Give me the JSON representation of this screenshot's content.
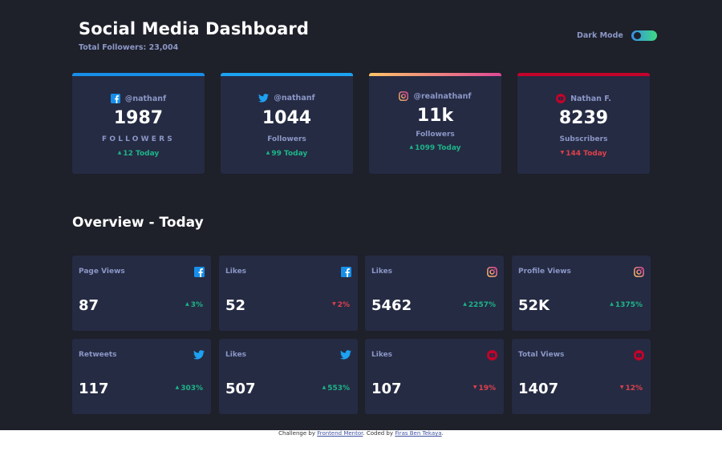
{
  "header": {
    "title": "Social Media Dashboard",
    "total_followers": "Total Followers: 23,004",
    "dark_mode_label": "Dark Mode"
  },
  "colors": {
    "background": "#1e202a",
    "card": "#252b43",
    "facebook": "#178fe9",
    "twitter": "#1da1f2",
    "instagram_gradient": [
      "#fdc468",
      "#df4996"
    ],
    "youtube": "#c4032a",
    "up": "#1db489",
    "down": "#dc414c"
  },
  "social_cards": [
    {
      "platform": "facebook",
      "icon": "facebook-icon",
      "handle": "@nathanf",
      "count": "1987",
      "unit": "FOLLOWERS",
      "today": "12 Today",
      "trend": "up"
    },
    {
      "platform": "twitter",
      "icon": "twitter-icon",
      "handle": "@nathanf",
      "count": "1044",
      "unit": "Followers",
      "today": "99 Today",
      "trend": "up"
    },
    {
      "platform": "instagram",
      "icon": "instagram-icon",
      "handle": "@realnathanf",
      "count": "11k",
      "unit": "Followers",
      "today": "1099 Today",
      "trend": "up"
    },
    {
      "platform": "youtube",
      "icon": "youtube-icon",
      "handle": "Nathan F.",
      "count": "8239",
      "unit": "Subscribers",
      "today": "144 Today",
      "trend": "down"
    }
  ],
  "overview": {
    "title": "Overview - Today",
    "cards": [
      {
        "label": "Page Views",
        "icon": "facebook-icon",
        "value": "87",
        "change": "3%",
        "trend": "up"
      },
      {
        "label": "Likes",
        "icon": "facebook-icon",
        "value": "52",
        "change": "2%",
        "trend": "down"
      },
      {
        "label": "Likes",
        "icon": "instagram-icon",
        "value": "5462",
        "change": "2257%",
        "trend": "up"
      },
      {
        "label": "Profile Views",
        "icon": "instagram-icon",
        "value": "52K",
        "change": "1375%",
        "trend": "up"
      },
      {
        "label": "Retweets",
        "icon": "twitter-icon",
        "value": "117",
        "change": "303%",
        "trend": "up"
      },
      {
        "label": "Likes",
        "icon": "twitter-icon",
        "value": "507",
        "change": "553%",
        "trend": "up"
      },
      {
        "label": "Likes",
        "icon": "youtube-icon",
        "value": "107",
        "change": "19%",
        "trend": "down"
      },
      {
        "label": "Total Views",
        "icon": "youtube-icon",
        "value": "1407",
        "change": "12%",
        "trend": "down"
      }
    ]
  },
  "footer": {
    "prefix": "Challenge by ",
    "link1": "Frontend Mentor",
    "middle": ". Coded by ",
    "link2": "Firas Ben Tekaya",
    "suffix": "."
  }
}
